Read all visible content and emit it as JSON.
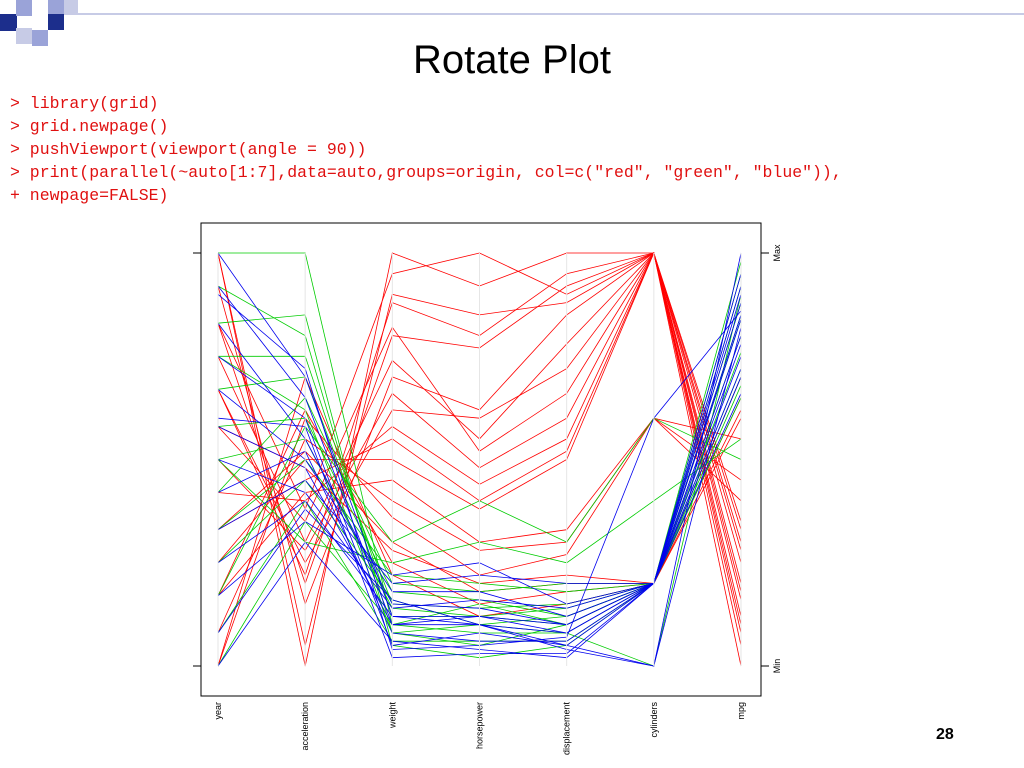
{
  "slide": {
    "title": "Rotate Plot",
    "page_number": "28",
    "code_lines": [
      "> library(grid)",
      "> grid.newpage()",
      "> pushViewport(viewport(angle = 90))",
      "> print(parallel(~auto[1:7],data=auto,groups=origin, col=c(\"red\", \"green\", \"blue\")),",
      "+ newpage=FALSE)"
    ],
    "code_color": "#e01010",
    "decor_colors": {
      "navy": "#1c2e8c",
      "periwinkle": "#9aa3d8",
      "line": "#c7cbe6"
    }
  },
  "chart_data": {
    "type": "parallel",
    "variables": [
      "year",
      "acceleration",
      "weight",
      "horsepower",
      "displacement",
      "cylinders",
      "mpg"
    ],
    "scale_labels": {
      "max": "Max",
      "min": "Min"
    },
    "ylim": [
      0,
      1
    ],
    "series": [
      {
        "color": "#ff0000",
        "lines": [
          [
            1.0,
            0.0,
            1.0,
            0.92,
            1.0,
            1.0,
            0.05
          ],
          [
            1.0,
            0.05,
            0.9,
            0.85,
            0.88,
            1.0,
            0.0
          ],
          [
            0.83,
            0.2,
            0.8,
            0.77,
            0.92,
            1.0,
            0.12
          ],
          [
            0.92,
            0.15,
            0.7,
            0.62,
            0.85,
            1.0,
            0.16
          ],
          [
            0.75,
            0.3,
            0.74,
            0.55,
            0.78,
            1.0,
            0.2
          ],
          [
            0.67,
            0.25,
            0.62,
            0.6,
            0.72,
            1.0,
            0.18
          ],
          [
            0.58,
            0.35,
            0.82,
            0.52,
            0.66,
            1.0,
            0.25
          ],
          [
            0.5,
            0.28,
            0.66,
            0.48,
            0.6,
            1.0,
            0.3
          ],
          [
            0.42,
            0.4,
            0.58,
            0.44,
            0.55,
            1.0,
            0.28
          ],
          [
            0.33,
            0.45,
            0.55,
            0.4,
            0.52,
            1.0,
            0.35
          ],
          [
            0.25,
            0.5,
            0.5,
            0.38,
            0.5,
            1.0,
            0.33
          ],
          [
            0.17,
            0.42,
            0.45,
            0.3,
            0.33,
            0.6,
            0.4
          ],
          [
            0.08,
            0.55,
            0.4,
            0.28,
            0.3,
            0.6,
            0.45
          ],
          [
            0.0,
            0.6,
            0.36,
            0.22,
            0.27,
            0.6,
            0.55
          ],
          [
            0.33,
            0.52,
            0.3,
            0.18,
            0.2,
            0.2,
            0.65
          ],
          [
            0.17,
            0.62,
            0.25,
            0.15,
            0.18,
            0.2,
            0.7
          ],
          [
            0.0,
            0.7,
            0.22,
            0.12,
            0.15,
            0.2,
            0.6
          ],
          [
            0.58,
            0.48,
            0.28,
            0.2,
            0.22,
            0.2,
            0.62
          ],
          [
            0.83,
            0.38,
            0.95,
            1.0,
            0.9,
            1.0,
            0.08
          ],
          [
            0.67,
            0.22,
            0.88,
            0.8,
            0.95,
            1.0,
            0.1
          ]
        ]
      },
      {
        "color": "#00cc00",
        "lines": [
          [
            1.0,
            1.0,
            0.1,
            0.15,
            0.1,
            0.2,
            0.95
          ],
          [
            0.92,
            0.8,
            0.08,
            0.1,
            0.08,
            0.2,
            0.92
          ],
          [
            0.83,
            0.85,
            0.05,
            0.02,
            0.05,
            0.2,
            0.98
          ],
          [
            0.75,
            0.75,
            0.12,
            0.12,
            0.1,
            0.2,
            0.85
          ],
          [
            0.67,
            0.7,
            0.15,
            0.14,
            0.15,
            0.2,
            0.8
          ],
          [
            0.58,
            0.6,
            0.18,
            0.16,
            0.12,
            0.2,
            0.76
          ],
          [
            0.5,
            0.55,
            0.14,
            0.12,
            0.14,
            0.2,
            0.72
          ],
          [
            0.42,
            0.65,
            0.2,
            0.18,
            0.2,
            0.2,
            0.68
          ],
          [
            0.33,
            0.5,
            0.22,
            0.2,
            0.18,
            0.2,
            0.7
          ],
          [
            0.25,
            0.45,
            0.16,
            0.1,
            0.12,
            0.2,
            0.65
          ],
          [
            0.17,
            0.58,
            0.3,
            0.4,
            0.3,
            0.6,
            0.5
          ],
          [
            0.08,
            0.4,
            0.06,
            0.06,
            0.06,
            0.2,
            0.88
          ],
          [
            0.0,
            0.35,
            0.1,
            0.08,
            0.08,
            0.0,
            0.9
          ],
          [
            0.5,
            0.3,
            0.25,
            0.3,
            0.25,
            0.4,
            0.55
          ],
          [
            0.75,
            0.62,
            0.08,
            0.05,
            0.1,
            0.2,
            0.84
          ]
        ]
      },
      {
        "color": "#0000ee",
        "lines": [
          [
            1.0,
            0.7,
            0.12,
            0.1,
            0.05,
            0.0,
            1.0
          ],
          [
            0.92,
            0.65,
            0.1,
            0.12,
            0.08,
            0.2,
            0.9
          ],
          [
            0.83,
            0.55,
            0.15,
            0.14,
            0.1,
            0.2,
            0.85
          ],
          [
            0.75,
            0.6,
            0.05,
            0.08,
            0.05,
            0.2,
            0.95
          ],
          [
            0.67,
            0.5,
            0.18,
            0.18,
            0.12,
            0.2,
            0.8
          ],
          [
            0.58,
            0.48,
            0.1,
            0.1,
            0.08,
            0.2,
            0.78
          ],
          [
            0.5,
            0.42,
            0.14,
            0.16,
            0.14,
            0.2,
            0.75
          ],
          [
            0.42,
            0.52,
            0.08,
            0.06,
            0.06,
            0.2,
            0.88
          ],
          [
            0.33,
            0.45,
            0.2,
            0.22,
            0.2,
            0.2,
            0.7
          ],
          [
            0.25,
            0.4,
            0.12,
            0.12,
            0.1,
            0.2,
            0.72
          ],
          [
            0.17,
            0.35,
            0.22,
            0.25,
            0.15,
            0.2,
            0.66
          ],
          [
            0.08,
            0.38,
            0.16,
            0.1,
            0.04,
            0.0,
            0.82
          ],
          [
            0.0,
            0.3,
            0.06,
            0.04,
            0.02,
            0.2,
            0.92
          ],
          [
            0.9,
            0.72,
            0.04,
            0.05,
            0.07,
            0.6,
            0.86
          ],
          [
            0.6,
            0.58,
            0.02,
            0.03,
            0.03,
            0.2,
            0.84
          ]
        ]
      }
    ]
  }
}
